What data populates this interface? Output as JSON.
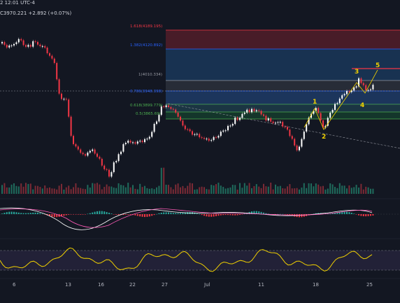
{
  "header": {
    "time": "2 12:01 UTC-4"
  },
  "quote": {
    "price": "C3970.221",
    "change": "+2.892 (+0.07%)"
  },
  "fib_levels": [
    {
      "label": "1.618(4189.195)",
      "value": 4189.195,
      "color": "#f23645"
    },
    {
      "label": "1.382(4120.892)",
      "value": 4120.892,
      "color": "#2962ff"
    },
    {
      "label": "1(4010.334)",
      "value": 4010.334,
      "color": "#9598a1"
    },
    {
      "label": "0.786(3948.398)",
      "value": 3948.398,
      "color": "#2962ff"
    },
    {
      "label": "0.618(3899.779)",
      "value": 3899.779,
      "color": "#4caf50"
    },
    {
      "label": "0.5(3865.69)",
      "value": 3865.69,
      "color": "#4caf50"
    }
  ],
  "waves": [
    "1",
    "2",
    "3",
    "4",
    "5"
  ],
  "x_labels": [
    "6",
    "13",
    "16",
    "22",
    "27",
    "Jul",
    "11",
    "18",
    "25"
  ],
  "colors": {
    "up": "#ffffff",
    "down": "#f23645",
    "rsi": "#f0d000",
    "macd_line": "#ffffff",
    "signal_line": "#ff5cb8"
  }
}
